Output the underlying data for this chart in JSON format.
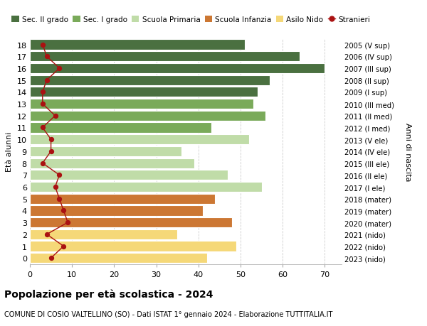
{
  "ages": [
    18,
    17,
    16,
    15,
    14,
    13,
    12,
    11,
    10,
    9,
    8,
    7,
    6,
    5,
    4,
    3,
    2,
    1,
    0
  ],
  "bar_values": [
    51,
    64,
    70,
    57,
    54,
    53,
    56,
    43,
    52,
    36,
    39,
    47,
    55,
    44,
    41,
    48,
    35,
    49,
    42
  ],
  "bar_colors": [
    "#4a7040",
    "#4a7040",
    "#4a7040",
    "#4a7040",
    "#4a7040",
    "#7aaa5a",
    "#7aaa5a",
    "#7aaa5a",
    "#c0dca8",
    "#c0dca8",
    "#c0dca8",
    "#c0dca8",
    "#c0dca8",
    "#cc7733",
    "#cc7733",
    "#cc7733",
    "#f5d878",
    "#f5d878",
    "#f5d878"
  ],
  "stranieri_values": [
    3,
    4,
    7,
    4,
    3,
    3,
    6,
    3,
    5,
    5,
    3,
    7,
    6,
    7,
    8,
    9,
    4,
    8,
    5
  ],
  "right_labels": [
    "2005 (V sup)",
    "2006 (IV sup)",
    "2007 (III sup)",
    "2008 (II sup)",
    "2009 (I sup)",
    "2010 (III med)",
    "2011 (II med)",
    "2012 (I med)",
    "2013 (V ele)",
    "2014 (IV ele)",
    "2015 (III ele)",
    "2016 (II ele)",
    "2017 (I ele)",
    "2018 (mater)",
    "2019 (mater)",
    "2020 (mater)",
    "2021 (nido)",
    "2022 (nido)",
    "2023 (nido)"
  ],
  "legend_labels": [
    "Sec. II grado",
    "Sec. I grado",
    "Scuola Primaria",
    "Scuola Infanzia",
    "Asilo Nido",
    "Stranieri"
  ],
  "legend_colors": [
    "#4a7040",
    "#7aaa5a",
    "#c0dca8",
    "#cc7733",
    "#f5d878",
    "#cc0000"
  ],
  "ylabel": "Età alunni",
  "right_ylabel": "Anni di nascita",
  "title": "Popolazione per età scolastica - 2024",
  "subtitle": "COMUNE DI COSIO VALTELLINO (SO) - Dati ISTAT 1° gennaio 2024 - Elaborazione TUTTITALIA.IT",
  "xlim": [
    0,
    74
  ],
  "xticks": [
    0,
    10,
    20,
    30,
    40,
    50,
    60,
    70
  ],
  "stranieri_color": "#aa1111",
  "bg_color": "#ffffff"
}
